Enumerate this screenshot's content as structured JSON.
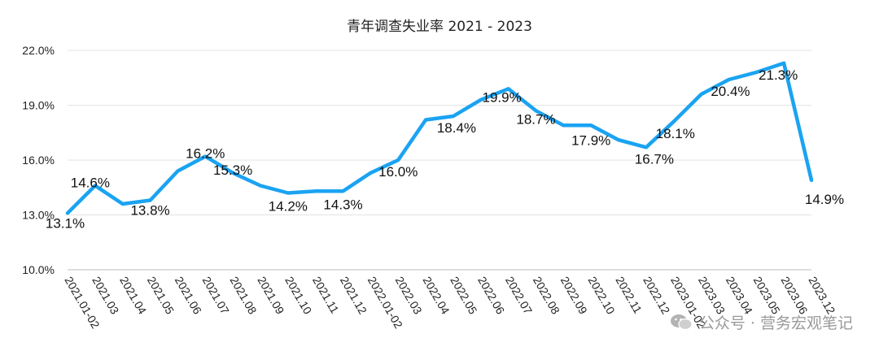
{
  "chart_data": {
    "type": "line",
    "title": "青年调查失业率 2021 - 2023",
    "xlabel": "",
    "ylabel": "",
    "ylim": [
      10.0,
      22.0
    ],
    "yticks": [
      10.0,
      13.0,
      16.0,
      19.0,
      22.0
    ],
    "ytick_labels": [
      "10.0%",
      "13.0%",
      "16.0%",
      "19.0%",
      "22.0%"
    ],
    "grid": true,
    "legend": "none",
    "x_tick_labels": [
      "2021.01-02",
      "2021.03",
      "2021.04",
      "2021.05",
      "2021.06",
      "2021.07",
      "2021.08",
      "2021.09",
      "2021.10",
      "2021.11",
      "2021.12",
      "2022.01-02",
      "2022.03",
      "2022.04",
      "2022.05",
      "2022.06",
      "2022.07",
      "2022.08",
      "2022.09",
      "2022.10",
      "2022.11",
      "2022.12",
      "2023.01-02",
      "2023.03",
      "2023.04",
      "2023.05",
      "2023.06",
      "2023.12"
    ],
    "series": [
      {
        "color": "#1aa3f2",
        "values": [
          13.1,
          14.6,
          13.6,
          13.8,
          15.4,
          16.2,
          15.3,
          14.6,
          14.2,
          14.3,
          14.3,
          15.3,
          16.0,
          18.2,
          18.4,
          19.3,
          19.9,
          18.7,
          17.9,
          17.9,
          17.1,
          16.7,
          18.1,
          19.6,
          20.4,
          20.8,
          21.3,
          14.9
        ]
      }
    ],
    "data_labels": [
      {
        "index": 0,
        "text": "13.1%"
      },
      {
        "index": 1,
        "text": "14.6%"
      },
      {
        "index": 3,
        "text": "13.8%"
      },
      {
        "index": 5,
        "text": "16.2%"
      },
      {
        "index": 6,
        "text": "15.3%"
      },
      {
        "index": 8,
        "text": "14.2%"
      },
      {
        "index": 10,
        "text": "14.3%"
      },
      {
        "index": 12,
        "text": "16.0%"
      },
      {
        "index": 14,
        "text": "18.4%"
      },
      {
        "index": 16,
        "text": "19.9%"
      },
      {
        "index": 17,
        "text": "18.7%"
      },
      {
        "index": 19,
        "text": "17.9%"
      },
      {
        "index": 21,
        "text": "16.7%"
      },
      {
        "index": 22,
        "text": "18.1%"
      },
      {
        "index": 24,
        "text": "20.4%"
      },
      {
        "index": 26,
        "text": "21.3%"
      },
      {
        "index": 27,
        "text": "14.9%"
      }
    ]
  },
  "watermark": {
    "text": "公众号 · 营务宏观笔记",
    "icon": "wechat-icon"
  }
}
